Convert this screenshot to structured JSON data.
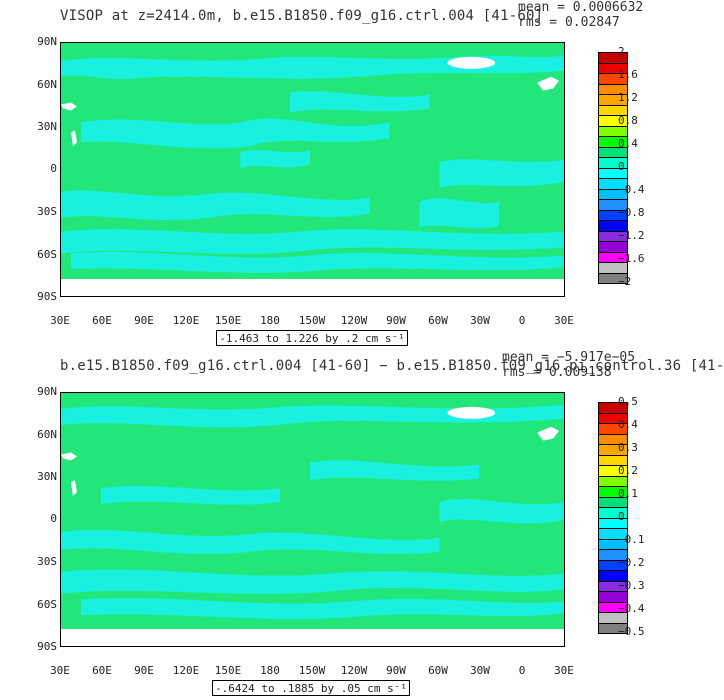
{
  "panels": [
    {
      "title": "VISOP at z=2414.0m, b.e15.B1850.f09_g16.ctrl.004 [41-60]",
      "mean": "mean = 0.0006632",
      "rms": "rms = 0.02847",
      "range_label": "-1.463 to 1.226 by .2 cm s⁻¹",
      "colorbar_labels": [
        "2",
        "1.6",
        "1.2",
        "0.8",
        "0.4",
        "0",
        "−0.4",
        "−0.8",
        "−1.2",
        "−1.6",
        "−2"
      ]
    },
    {
      "title": "b.e15.B1850.f09_g16.ctrl.004 [41-60] − b.e15.B1850.f09_g16.pi_control.36 [41-",
      "mean": "mean = −5.917e−05",
      "rms": "rms = 0.009138",
      "range_label": "-.6424 to .1885 by .05 cm s⁻¹",
      "colorbar_labels": [
        "0.5",
        "0.4",
        "0.3",
        "0.2",
        "0.1",
        "0",
        "−0.1",
        "−0.2",
        "−0.3",
        "−0.4",
        "−0.5"
      ]
    }
  ],
  "axes": {
    "lat_labels": [
      "90N",
      "60N",
      "30N",
      "0",
      "30S",
      "60S",
      "90S"
    ],
    "lon_labels": [
      "30E",
      "60E",
      "90E",
      "120E",
      "150E",
      "180",
      "150W",
      "120W",
      "90W",
      "60W",
      "30W",
      "0",
      "30E"
    ]
  },
  "colorbar_colors": [
    "#c80000",
    "#ee0000",
    "#ff4500",
    "#ff8c00",
    "#ffa500",
    "#ffd700",
    "#ffff00",
    "#7fff00",
    "#00ff00",
    "#00e07a",
    "#00ffcc",
    "#00ffff",
    "#00dfff",
    "#00bfff",
    "#1e90ff",
    "#0040ff",
    "#0000ff",
    "#8a2be2",
    "#9400d3",
    "#ff00ff",
    "#c0c0c0",
    "#808080"
  ],
  "map_colors": {
    "ocean": "#22e67a",
    "anomaly": "#19f0e0",
    "land": "#ffffff"
  }
}
